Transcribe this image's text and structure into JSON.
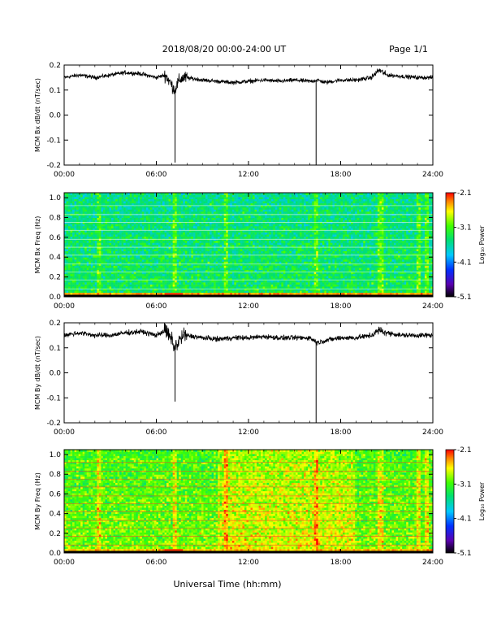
{
  "header": {
    "title": "2018/08/20  00:00-24:00 UT",
    "page": "Page 1/1"
  },
  "colors": {
    "trace": "#000000",
    "gridline": "#ffffff"
  },
  "chart_data": [
    {
      "type": "line",
      "ylabel": "MCM Bx dB/dt (nT/sec)",
      "xlabel": "",
      "xlim": [
        0,
        24
      ],
      "ylim": [
        -0.2,
        0.2
      ],
      "xticks": [
        "00:00",
        "06:00",
        "12:00",
        "18:00",
        "24:00"
      ],
      "yticks": [
        "0.2",
        "0.1",
        "0.0",
        "-0.1",
        "-0.2"
      ],
      "series": [
        {
          "x": [
            0,
            1,
            2,
            3,
            4,
            5,
            6,
            6.6,
            7,
            7.2,
            7.5,
            7.8,
            8.5,
            9,
            10,
            11,
            12,
            13,
            14,
            15,
            16,
            16.5,
            17,
            18,
            19,
            20,
            20.5,
            21,
            22,
            23,
            24
          ],
          "y": [
            0.15,
            0.16,
            0.15,
            0.16,
            0.17,
            0.165,
            0.15,
            0.16,
            0.12,
            0.1,
            0.14,
            0.15,
            0.145,
            0.14,
            0.135,
            0.13,
            0.135,
            0.14,
            0.135,
            0.14,
            0.135,
            0.14,
            0.13,
            0.14,
            0.14,
            0.15,
            0.18,
            0.16,
            0.155,
            0.15,
            0.15
          ],
          "noise": 0.012
        }
      ],
      "spikes": [
        {
          "x": 7.22,
          "y": -0.19
        },
        {
          "x": 16.4,
          "y": -0.2
        }
      ]
    },
    {
      "type": "heatmap",
      "ylabel": "MCM Bx Freq (Hz)",
      "xlabel": "",
      "xlim": [
        0,
        24
      ],
      "ylim": [
        0,
        1.05
      ],
      "xticks": [
        "00:00",
        "06:00",
        "12:00",
        "18:00",
        "24:00"
      ],
      "yticks": [
        "1.0",
        "0.8",
        "0.6",
        "0.4",
        "0.2",
        "0.0"
      ],
      "colorbar": {
        "label": "Log₁₀ Power",
        "ticks": [
          "-2.1",
          "-3.1",
          "-4.1",
          "-5.1"
        ],
        "range": [
          -5.1,
          -2.1
        ]
      },
      "base_power": -3.35,
      "harmonic_lines_hz": [
        0.08,
        0.17,
        0.25,
        0.33,
        0.42,
        0.5,
        0.58,
        0.67,
        0.75,
        0.83,
        0.92
      ],
      "bright_times_hr": [
        2.3,
        7.2,
        10.5,
        16.4,
        20.6,
        23.1,
        23.6
      ],
      "low_freq_power": -2.4
    },
    {
      "type": "line",
      "ylabel": "MCM By dB/dt (nT/sec)",
      "xlabel": "",
      "xlim": [
        0,
        24
      ],
      "ylim": [
        -0.2,
        0.2
      ],
      "xticks": [
        "00:00",
        "06:00",
        "12:00",
        "18:00",
        "24:00"
      ],
      "yticks": [
        "0.2",
        "0.1",
        "0.0",
        "-0.1",
        "-0.2"
      ],
      "series": [
        {
          "x": [
            0,
            1,
            2,
            3,
            4,
            5,
            6,
            6.6,
            7,
            7.2,
            7.5,
            7.8,
            8.5,
            9,
            10,
            11,
            12,
            13,
            14,
            15,
            16,
            16.5,
            17,
            18,
            19,
            20,
            20.5,
            21,
            22,
            23,
            24
          ],
          "y": [
            0.15,
            0.16,
            0.15,
            0.15,
            0.16,
            0.165,
            0.15,
            0.17,
            0.13,
            0.1,
            0.13,
            0.15,
            0.145,
            0.14,
            0.135,
            0.14,
            0.14,
            0.145,
            0.14,
            0.14,
            0.14,
            0.12,
            0.13,
            0.14,
            0.14,
            0.15,
            0.17,
            0.16,
            0.15,
            0.15,
            0.15
          ],
          "noise": 0.015
        }
      ],
      "spikes": [
        {
          "x": 7.22,
          "y": -0.115
        },
        {
          "x": 16.4,
          "y": -0.2
        }
      ]
    },
    {
      "type": "heatmap",
      "ylabel": "MCM By Freq (Hz)",
      "xlabel": "Universal Time (hh:mm)",
      "xlim": [
        0,
        24
      ],
      "ylim": [
        0,
        1.05
      ],
      "xticks": [
        "00:00",
        "06:00",
        "12:00",
        "18:00",
        "24:00"
      ],
      "yticks": [
        "1.0",
        "0.8",
        "0.6",
        "0.4",
        "0.2",
        "0.0"
      ],
      "colorbar": {
        "label": "Log₁₀ Power",
        "ticks": [
          "-2.1",
          "-3.1",
          "-4.1",
          "-5.1"
        ],
        "range": [
          -5.1,
          -2.1
        ]
      },
      "base_power": -2.95,
      "harmonic_lines_hz": [
        0.08,
        0.17,
        0.25,
        0.33,
        0.42,
        0.5,
        0.58,
        0.67,
        0.75,
        0.83,
        0.92
      ],
      "bright_times_hr": [
        2.3,
        7.2,
        10.5,
        16.4,
        20.6,
        23.1,
        23.6
      ],
      "low_freq_power": -2.5
    }
  ]
}
